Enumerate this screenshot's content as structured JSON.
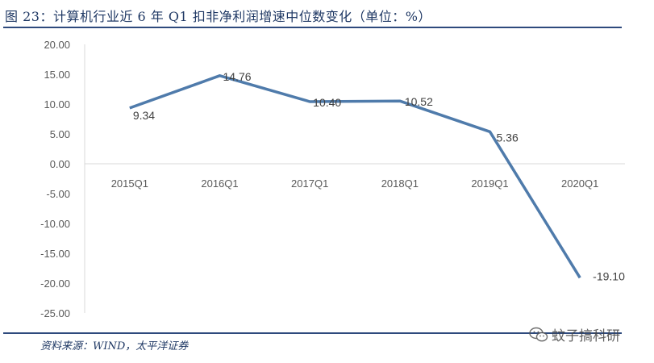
{
  "title": "图 23：计算机行业近 6 年 Q1 扣非净利润增速中位数变化（单位：%）",
  "source": "资料来源：WIND，太平洋证券",
  "watermark": {
    "text": "蚊子搞科研",
    "icon": "wechat-icon"
  },
  "colors": {
    "line": "#4f7bab",
    "title": "#1f3864",
    "rule": "#2e4a7d",
    "axis_text": "#595959"
  },
  "chart_data": {
    "type": "line",
    "title": "",
    "xlabel": "",
    "ylabel": "",
    "categories": [
      "2015Q1",
      "2016Q1",
      "2017Q1",
      "2018Q1",
      "2019Q1",
      "2020Q1"
    ],
    "values": [
      9.34,
      14.76,
      10.4,
      10.52,
      5.36,
      -19.1
    ],
    "data_labels": [
      "9.34",
      "14.76",
      "10.40",
      "10.52",
      "5.36",
      "-19.10"
    ],
    "ylim": [
      -25,
      20
    ],
    "yticks": [
      "20.00",
      "15.00",
      "10.00",
      "5.00",
      "0.00",
      "-5.00",
      "-10.00",
      "-15.00",
      "-20.00",
      "-25.00"
    ],
    "ytick_values": [
      20,
      15,
      10,
      5,
      0,
      -5,
      -10,
      -15,
      -20,
      -25
    ],
    "grid": false,
    "legend": "none"
  }
}
